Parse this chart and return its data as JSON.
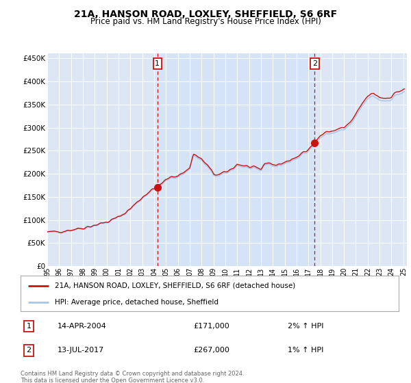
{
  "title": "21A, HANSON ROAD, LOXLEY, SHEFFIELD, S6 6RF",
  "subtitle": "Price paid vs. HM Land Registry's House Price Index (HPI)",
  "ylim": [
    0,
    460000
  ],
  "yticks": [
    0,
    50000,
    100000,
    150000,
    200000,
    250000,
    300000,
    350000,
    400000,
    450000
  ],
  "background_color": "#dce6f5",
  "plot_bg": "#dce6f5",
  "grid_color": "#ffffff",
  "legend_label_red": "21A, HANSON ROAD, LOXLEY, SHEFFIELD, S6 6RF (detached house)",
  "legend_label_blue": "HPI: Average price, detached house, Sheffield",
  "sale1_year": 2004.28,
  "sale1_price": 171000,
  "sale2_year": 2017.53,
  "sale2_price": 267000,
  "footer": "Contains HM Land Registry data © Crown copyright and database right 2024.\nThis data is licensed under the Open Government Licence v3.0.",
  "table_rows": [
    {
      "num": "1",
      "date": "14-APR-2004",
      "price": "£171,000",
      "hpi": "2% ↑ HPI"
    },
    {
      "num": "2",
      "date": "13-JUL-2017",
      "price": "£267,000",
      "hpi": "1% ↑ HPI"
    }
  ]
}
